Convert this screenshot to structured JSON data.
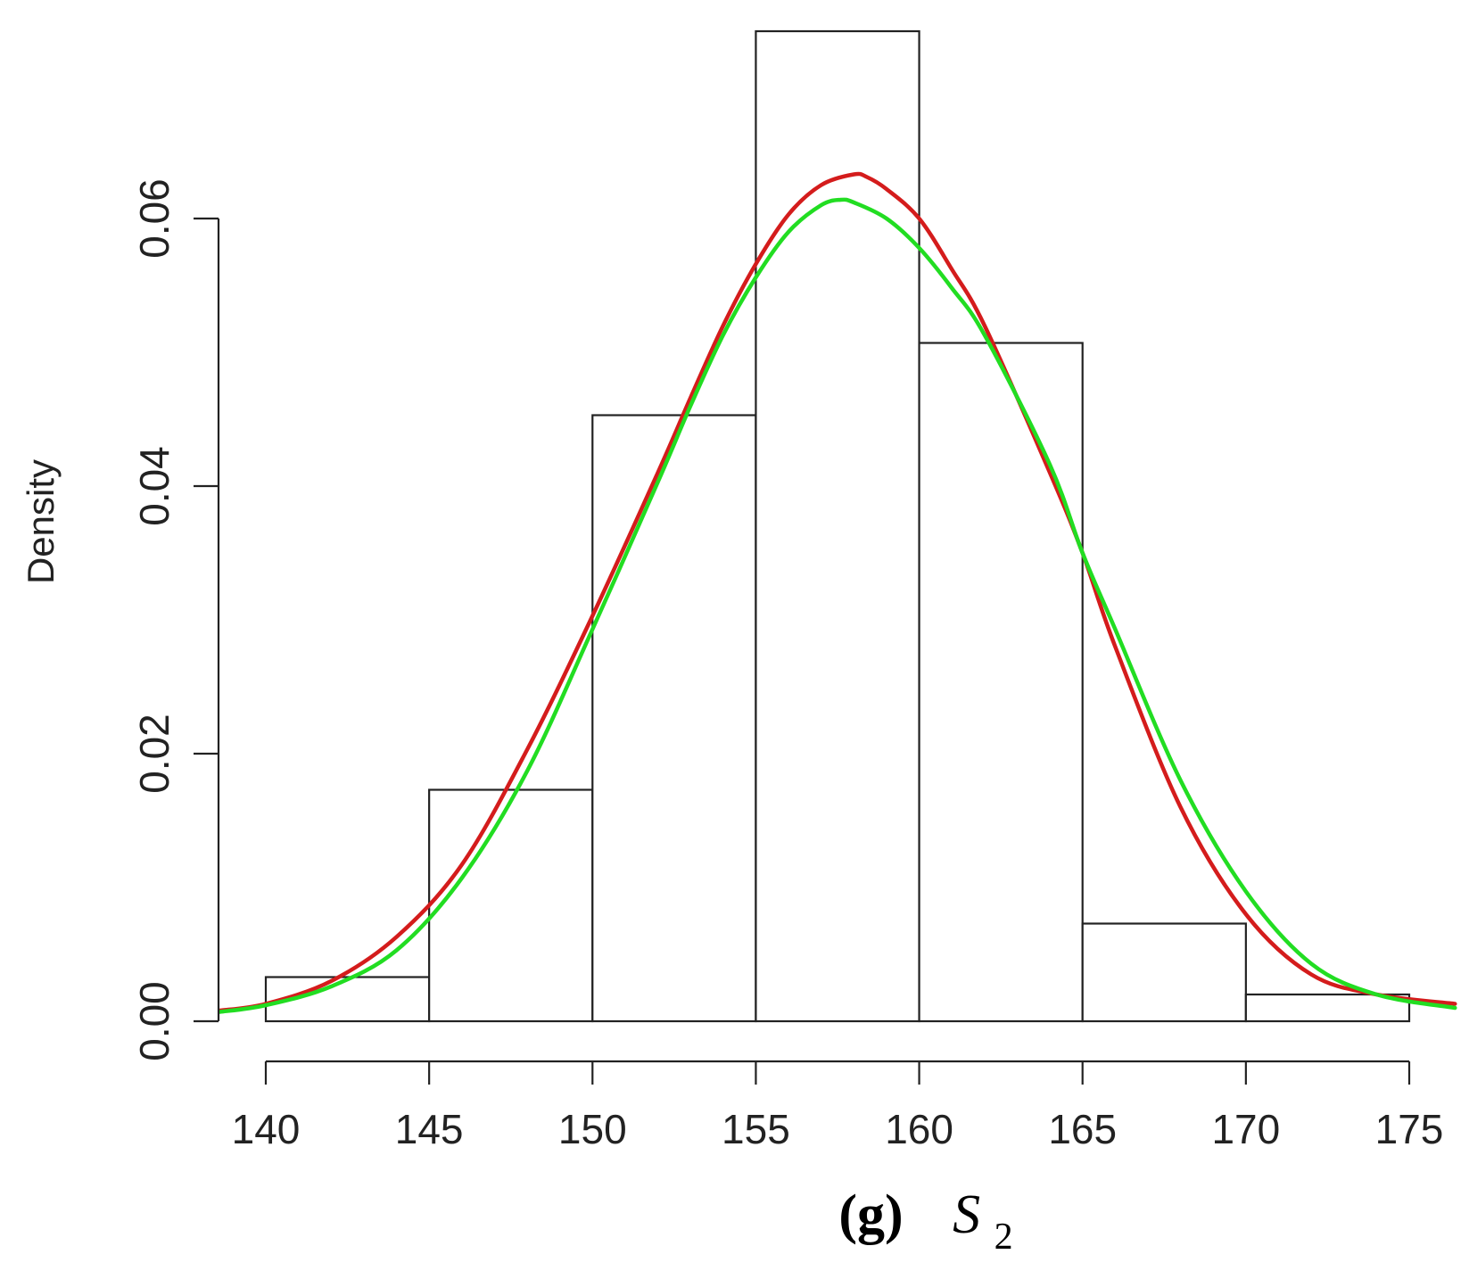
{
  "chart_data": {
    "type": "bar",
    "subtype": "histogram-with-density-curves",
    "ylabel": "Density",
    "xlabel": "",
    "caption": {
      "label": "(g)",
      "symbol": "S",
      "subscript": "2"
    },
    "bins": [
      {
        "start": 140,
        "end": 145,
        "density": 0.0033
      },
      {
        "start": 145,
        "end": 150,
        "density": 0.0173
      },
      {
        "start": 150,
        "end": 155,
        "density": 0.0453
      },
      {
        "start": 155,
        "end": 160,
        "density": 0.074
      },
      {
        "start": 160,
        "end": 165,
        "density": 0.0507
      },
      {
        "start": 165,
        "end": 170,
        "density": 0.0073
      },
      {
        "start": 170,
        "end": 175,
        "density": 0.002
      }
    ],
    "x_ticks": [
      "140",
      "145",
      "150",
      "155",
      "160",
      "165",
      "170",
      "175"
    ],
    "x_tick_values": [
      140,
      145,
      150,
      155,
      160,
      165,
      170,
      175
    ],
    "y_ticks": [
      "0.00",
      "0.02",
      "0.04",
      "0.06"
    ],
    "y_tick_values": [
      0,
      0.02,
      0.04,
      0.06
    ],
    "xlim": [
      138.6,
      176.4
    ],
    "ylim": [
      0,
      0.075
    ],
    "grid": false,
    "series": [
      {
        "color": "#d41c1c",
        "x": [
          138.6,
          140,
          142,
          144,
          146,
          148,
          150,
          152,
          153,
          154,
          155,
          156,
          157,
          158,
          158.4,
          159,
          160,
          161,
          162,
          164,
          165,
          166,
          168,
          170,
          172,
          174,
          176.4
        ],
        "y": [
          0.0008,
          0.0013,
          0.003,
          0.0063,
          0.0117,
          0.0203,
          0.0303,
          0.041,
          0.0466,
          0.052,
          0.0566,
          0.0603,
          0.0625,
          0.0633,
          0.0631,
          0.0622,
          0.06,
          0.0562,
          0.052,
          0.041,
          0.035,
          0.028,
          0.016,
          0.008,
          0.0035,
          0.002,
          0.0013
        ]
      },
      {
        "color": "#22dd22",
        "x": [
          138.6,
          140,
          142,
          144,
          146,
          148,
          150,
          152,
          153,
          154,
          155,
          156,
          157,
          157.6,
          158,
          159,
          160,
          161,
          162,
          164,
          165,
          166,
          168,
          170,
          172,
          174,
          176.4
        ],
        "y": [
          0.0007,
          0.0012,
          0.0026,
          0.0053,
          0.0107,
          0.0187,
          0.0293,
          0.0403,
          0.046,
          0.0513,
          0.0556,
          0.059,
          0.061,
          0.0614,
          0.0612,
          0.06,
          0.0578,
          0.0548,
          0.0513,
          0.0416,
          0.035,
          0.0293,
          0.018,
          0.0097,
          0.0043,
          0.002,
          0.001
        ]
      }
    ]
  }
}
